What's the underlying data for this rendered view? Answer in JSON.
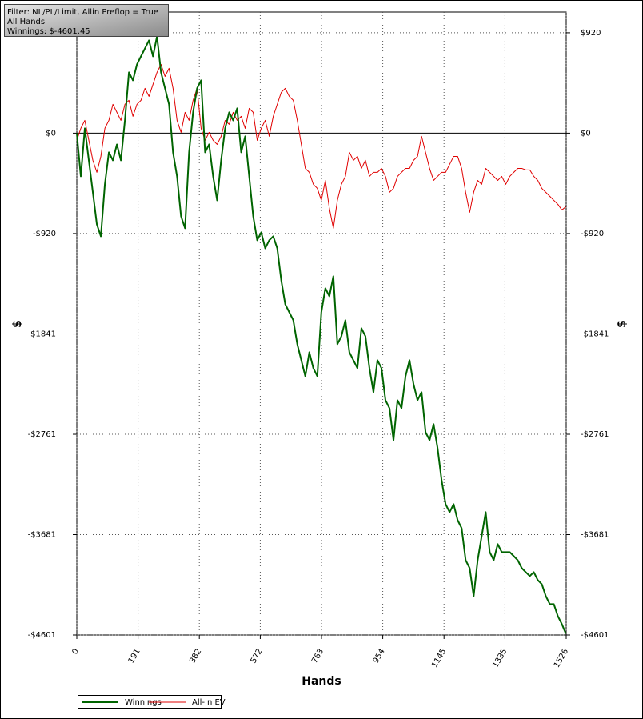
{
  "chart_data": {
    "type": "line",
    "annotation": [
      "Filter: NL/PL/Limit, Allin Preflop = True",
      "All Hands",
      "Winnings: $-4601.45"
    ],
    "xlabel": "Hands",
    "ylabel": "$",
    "y2label": "$",
    "xlim": [
      0,
      1526
    ],
    "xticks": [
      0,
      191,
      382,
      572,
      763,
      954,
      1145,
      1335,
      1526
    ],
    "ylim": [
      -4601,
      1110
    ],
    "yticks": [
      {
        "value": 920,
        "label": "$920"
      },
      {
        "value": 0,
        "label": "$0"
      },
      {
        "value": -920,
        "label": "-$920"
      },
      {
        "value": -1841,
        "label": "-$1841"
      },
      {
        "value": -2761,
        "label": "-$2761"
      },
      {
        "value": -3681,
        "label": "-$3681"
      },
      {
        "value": -4601,
        "label": "-$4601"
      }
    ],
    "grid": true,
    "legend": "bottom-left",
    "x": [
      0,
      12.5,
      25,
      37.5,
      50,
      62.5,
      75,
      87.5,
      100,
      112.5,
      125,
      137.5,
      150,
      162.5,
      175,
      187.5,
      200,
      212.5,
      225,
      237.5,
      250,
      262.5,
      275,
      287.5,
      300,
      312.5,
      325,
      337.5,
      350,
      362.5,
      375,
      387.5,
      400,
      412.5,
      425,
      437.5,
      450,
      462.5,
      475,
      487.5,
      500,
      512.5,
      525,
      537.5,
      550,
      562.5,
      575,
      587.5,
      600,
      612.5,
      625,
      637.5,
      650,
      662.5,
      675,
      687.5,
      700,
      712.5,
      725,
      737.5,
      750,
      762.5,
      775,
      787.5,
      800,
      812.5,
      825,
      837.5,
      850,
      862.5,
      875,
      887.5,
      900,
      912.5,
      925,
      937.5,
      950,
      962.5,
      975,
      987.5,
      1000,
      1012.5,
      1025,
      1037.5,
      1050,
      1062.5,
      1075,
      1087.5,
      1100,
      1112.5,
      1125,
      1137.5,
      1150,
      1162.5,
      1175,
      1187.5,
      1200,
      1212.5,
      1225,
      1237.5,
      1250,
      1262.5,
      1275,
      1287.5,
      1300,
      1312.5,
      1325,
      1337.5,
      1350,
      1362.5,
      1375,
      1387.5,
      1400,
      1412.5,
      1425,
      1437.5,
      1450,
      1462.5,
      1475,
      1487.5,
      1500,
      1512.5,
      1525
    ],
    "series": [
      {
        "name": "Winnings",
        "color": "#006400",
        "width": 2,
        "values": [
          0,
          -396,
          44,
          -249,
          -542,
          -836,
          -946,
          -469,
          -176,
          -249,
          -103,
          -249,
          117,
          557,
          484,
          630,
          704,
          777,
          850,
          704,
          887,
          557,
          411,
          264,
          -176,
          -396,
          -762,
          -872,
          -176,
          191,
          411,
          484,
          -176,
          -103,
          -396,
          -616,
          -249,
          44,
          191,
          117,
          227,
          -176,
          -29,
          -396,
          -762,
          -982,
          -909,
          -1056,
          -982,
          -946,
          -1056,
          -1349,
          -1569,
          -1642,
          -1715,
          -1935,
          -2082,
          -2229,
          -2009,
          -2155,
          -2229,
          -1642,
          -1422,
          -1496,
          -1312,
          -1935,
          -1862,
          -1715,
          -2009,
          -2082,
          -2155,
          -1789,
          -1862,
          -2155,
          -2375,
          -2082,
          -2155,
          -2449,
          -2522,
          -2815,
          -2449,
          -2522,
          -2229,
          -2082,
          -2302,
          -2449,
          -2375,
          -2742,
          -2815,
          -2668,
          -2888,
          -3182,
          -3402,
          -3475,
          -3402,
          -3548,
          -3622,
          -3915,
          -3988,
          -4245,
          -3915,
          -3695,
          -3475,
          -3841,
          -3915,
          -3768,
          -3841,
          -3841,
          -3841,
          -3878,
          -3915,
          -3988,
          -4025,
          -4061,
          -4025,
          -4098,
          -4135,
          -4245,
          -4318,
          -4318,
          -4428,
          -4501,
          -4589
        ]
      },
      {
        "name": "All-In EV",
        "color": "#e00000",
        "width": 1,
        "values": [
          -66,
          44,
          117,
          -66,
          -249,
          -359,
          -213,
          44,
          117,
          264,
          191,
          117,
          264,
          301,
          154,
          264,
          301,
          411,
          337,
          447,
          557,
          630,
          520,
          594,
          411,
          117,
          7,
          191,
          117,
          301,
          411,
          44,
          -66,
          7,
          -66,
          -103,
          -29,
          117,
          81,
          191,
          117,
          154,
          44,
          227,
          191,
          -66,
          44,
          117,
          -29,
          154,
          264,
          374,
          411,
          337,
          301,
          117,
          -103,
          -323,
          -359,
          -469,
          -506,
          -616,
          -433,
          -689,
          -872,
          -616,
          -469,
          -396,
          -176,
          -249,
          -213,
          -323,
          -249,
          -396,
          -359,
          -359,
          -323,
          -396,
          -542,
          -506,
          -396,
          -359,
          -323,
          -323,
          -249,
          -213,
          -29,
          -176,
          -323,
          -433,
          -396,
          -359,
          -359,
          -286,
          -213,
          -213,
          -323,
          -542,
          -726,
          -542,
          -433,
          -469,
          -323,
          -359,
          -396,
          -433,
          -396,
          -469,
          -396,
          -359,
          -323,
          -323,
          -337,
          -337,
          -396,
          -433,
          -506,
          -542,
          -579,
          -616,
          -652,
          -704,
          -674
        ]
      }
    ]
  }
}
